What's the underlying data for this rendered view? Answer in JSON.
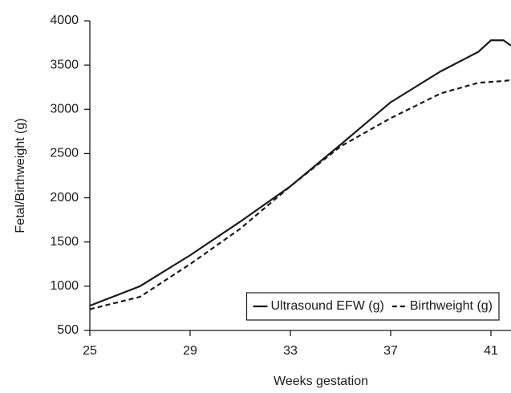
{
  "chart_data": {
    "type": "line",
    "x_label": "Weeks gestation",
    "y_label": "Fetal/Birthweight (g)",
    "x": [
      25,
      27,
      29,
      31,
      33,
      35,
      37,
      39,
      40.5,
      41,
      41.5,
      41.8
    ],
    "series": [
      {
        "name": "Ultrasound EFW (g)",
        "color": "#1a1a1a",
        "style": "solid",
        "values": [
          780,
          1000,
          1350,
          1730,
          2130,
          2600,
          3080,
          3430,
          3650,
          3780,
          3780,
          3720
        ]
      },
      {
        "name": "Birthweight (g)",
        "color": "#1a1a1a",
        "style": "dashed",
        "values": [
          740,
          880,
          1250,
          1650,
          2130,
          2580,
          2900,
          3180,
          3300,
          3310,
          3320,
          3330
        ]
      }
    ],
    "xlim": [
      25,
      41.8
    ],
    "xticks": [
      25,
      29,
      33,
      37,
      41
    ],
    "ylim": [
      500,
      4000
    ],
    "yticks": [
      500,
      1000,
      1500,
      2000,
      2500,
      3000,
      3500,
      4000
    ],
    "legend": "lower right",
    "grid": false
  }
}
